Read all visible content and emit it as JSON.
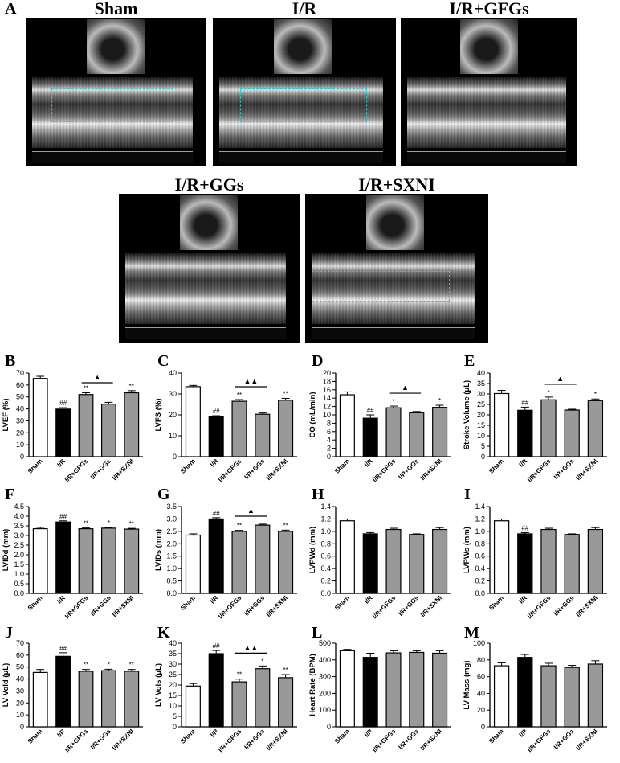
{
  "panel_letters": {
    "A": "A",
    "B": "B",
    "C": "C",
    "D": "D",
    "E": "E",
    "F": "F",
    "G": "G",
    "H": "H",
    "I": "I",
    "J": "J",
    "K": "K",
    "L": "L",
    "M": "M"
  },
  "echo_titles": [
    "Sham",
    "I/R",
    "I/R+GFGs",
    "I/R+GGs",
    "I/R+SXNI"
  ],
  "colors": {
    "sham": "#ffffff",
    "ir": "#000000",
    "treat": "#999999",
    "trace": "#35c6c8",
    "ecg": "#4fd16a"
  },
  "chart_data": [
    {
      "id": "B",
      "type": "bar",
      "categories": [
        "Sham",
        "I/R",
        "I/R+GFGs",
        "I/R+GGs",
        "I/R+SXNI"
      ],
      "values": [
        65.5,
        39.8,
        52,
        44,
        53.5
      ],
      "errors": [
        1.8,
        1.2,
        1.5,
        1.5,
        1.8
      ],
      "ylabel": "LVEF (%)",
      "ylim": [
        0,
        70
      ],
      "yticks": [
        0,
        10,
        20,
        30,
        40,
        50,
        60,
        70
      ],
      "marks": [
        "",
        "##",
        "**",
        "",
        "**"
      ],
      "bracket": {
        "from": 2,
        "to": 3,
        "label": "▲"
      }
    },
    {
      "id": "C",
      "type": "bar",
      "categories": [
        "Sham",
        "I/R",
        "I/R+GFGs",
        "I/R+GGs",
        "I/R+SXNI"
      ],
      "values": [
        33.5,
        19,
        26.5,
        20.3,
        27
      ],
      "errors": [
        0.6,
        0.6,
        0.8,
        0.6,
        0.9
      ],
      "ylabel": "LVFS (%)",
      "ylim": [
        0,
        40
      ],
      "yticks": [
        0,
        10,
        20,
        30,
        40
      ],
      "marks": [
        "",
        "##",
        "**",
        "",
        "**"
      ],
      "bracket": {
        "from": 2,
        "to": 3,
        "label": "▲▲"
      }
    },
    {
      "id": "D",
      "type": "bar",
      "categories": [
        "Sham",
        "I/R",
        "I/R+GFGs",
        "I/R+GGs",
        "I/R+SXNI"
      ],
      "values": [
        14.8,
        9.2,
        11.7,
        10.5,
        11.8
      ],
      "errors": [
        0.7,
        0.8,
        0.4,
        0.3,
        0.5
      ],
      "ylabel": "CO (mL/min)",
      "ylim": [
        0,
        20
      ],
      "yticks": [
        0,
        2,
        4,
        6,
        8,
        10,
        12,
        14,
        16,
        18,
        20
      ],
      "marks": [
        "",
        "##",
        "*",
        "",
        "*"
      ],
      "bracket": {
        "from": 2,
        "to": 3,
        "label": "▲"
      }
    },
    {
      "id": "E",
      "type": "bar",
      "categories": [
        "Sham",
        "I/R",
        "I/R+GFGs",
        "I/R+GGs",
        "I/R+SXNI"
      ],
      "values": [
        30.2,
        22.2,
        27.2,
        22.3,
        26.8
      ],
      "errors": [
        1.5,
        1.5,
        1.3,
        0.4,
        0.8
      ],
      "ylabel": "Stroke Volume (μL)",
      "ylim": [
        0,
        40
      ],
      "yticks": [
        0,
        5,
        10,
        15,
        20,
        25,
        30,
        35,
        40
      ],
      "marks": [
        "",
        "##",
        "*",
        "",
        "*"
      ],
      "bracket": {
        "from": 2,
        "to": 3,
        "label": "▲"
      }
    },
    {
      "id": "F",
      "type": "bar",
      "categories": [
        "Sham",
        "I/R",
        "I/R+GFGs",
        "I/R+GGs",
        "I/R+SXNI"
      ],
      "values": [
        3.35,
        3.7,
        3.35,
        3.38,
        3.33
      ],
      "errors": [
        0.07,
        0.06,
        0.04,
        0.03,
        0.04
      ],
      "ylabel": "LVIDd (mm)",
      "ylim": [
        0,
        4.5
      ],
      "yticks": [
        0,
        0.5,
        1.0,
        1.5,
        2.0,
        2.5,
        3.0,
        3.5,
        4.0,
        4.5
      ],
      "marks": [
        "",
        "##",
        "**",
        "*",
        "**"
      ],
      "bracket": null
    },
    {
      "id": "G",
      "type": "bar",
      "categories": [
        "Sham",
        "I/R",
        "I/R+GFGs",
        "I/R+GGs",
        "I/R+SXNI"
      ],
      "values": [
        2.35,
        3.0,
        2.5,
        2.75,
        2.5
      ],
      "errors": [
        0.05,
        0.05,
        0.04,
        0.04,
        0.05
      ],
      "ylabel": "LVIDs (mm)",
      "ylim": [
        0,
        3.5
      ],
      "yticks": [
        0,
        0.5,
        1.0,
        1.5,
        2.0,
        2.5,
        3.0,
        3.5
      ],
      "marks": [
        "",
        "##",
        "**",
        "",
        "**"
      ],
      "bracket": {
        "from": 2,
        "to": 3,
        "label": "▲"
      }
    },
    {
      "id": "H",
      "type": "bar",
      "categories": [
        "Sham",
        "I/R",
        "I/R+GFGs",
        "I/R+GGs",
        "I/R+SXNI"
      ],
      "values": [
        1.17,
        0.96,
        1.03,
        0.95,
        1.03
      ],
      "errors": [
        0.03,
        0.02,
        0.02,
        0.01,
        0.03
      ],
      "ylabel": "LVPWd (mm)",
      "ylim": [
        0,
        1.4
      ],
      "yticks": [
        0,
        0.2,
        0.4,
        0.6,
        0.8,
        1.0,
        1.2,
        1.4
      ],
      "marks": [
        "",
        "",
        "",
        "",
        ""
      ],
      "bracket": null
    },
    {
      "id": "I",
      "type": "bar",
      "categories": [
        "Sham",
        "I/R",
        "I/R+GFGs",
        "I/R+GGs",
        "I/R+SXNI"
      ],
      "values": [
        1.17,
        0.96,
        1.03,
        0.95,
        1.03
      ],
      "errors": [
        0.03,
        0.02,
        0.02,
        0.01,
        0.03
      ],
      "ylabel": "LVPWs (mm)",
      "ylim": [
        0,
        1.4
      ],
      "yticks": [
        0,
        0.2,
        0.4,
        0.6,
        0.8,
        1.0,
        1.2,
        1.4
      ],
      "marks": [
        "",
        "##",
        "",
        "",
        ""
      ],
      "bracket": null
    },
    {
      "id": "J",
      "type": "bar",
      "categories": [
        "Sham",
        "I/R",
        "I/R+GFGs",
        "I/R+GGs",
        "I/R+SXNI"
      ],
      "values": [
        45.5,
        59,
        46.5,
        47,
        46.5
      ],
      "errors": [
        2.5,
        3,
        1.5,
        1.2,
        1.5
      ],
      "ylabel": "LV Vold (μL)",
      "ylim": [
        0,
        70
      ],
      "yticks": [
        0,
        10,
        20,
        30,
        40,
        50,
        60,
        70
      ],
      "marks": [
        "",
        "##",
        "**",
        "*",
        "**"
      ],
      "bracket": null
    },
    {
      "id": "K",
      "type": "bar",
      "categories": [
        "Sham",
        "I/R",
        "I/R+GFGs",
        "I/R+GGs",
        "I/R+SXNI"
      ],
      "values": [
        19.5,
        35,
        21.5,
        27.8,
        23.5
      ],
      "errors": [
        1.2,
        1.5,
        1.3,
        1.3,
        1.5
      ],
      "ylabel": "LV Vols (μL)",
      "ylim": [
        0,
        40
      ],
      "yticks": [
        0,
        5,
        10,
        15,
        20,
        25,
        30,
        35,
        40
      ],
      "marks": [
        "",
        "##",
        "**",
        "*",
        "**"
      ],
      "bracket": {
        "from": 2,
        "to": 3,
        "label": "▲▲"
      }
    },
    {
      "id": "L",
      "type": "bar",
      "categories": [
        "Sham",
        "I/R",
        "I/R+GFGs",
        "I/R+GGs",
        "I/R+SXNI"
      ],
      "values": [
        455,
        415,
        442,
        445,
        440
      ],
      "errors": [
        8,
        25,
        12,
        10,
        15
      ],
      "ylabel": "Heart Rate (BPM)",
      "ylim": [
        0,
        500
      ],
      "yticks": [
        0,
        100,
        200,
        300,
        400,
        500
      ],
      "marks": [
        "",
        "",
        "",
        "",
        ""
      ],
      "bracket": null
    },
    {
      "id": "M",
      "type": "bar",
      "categories": [
        "Sham",
        "I/R",
        "I/R+GFGs",
        "I/R+GGs",
        "I/R+SXNI"
      ],
      "values": [
        73,
        83,
        73,
        71,
        75
      ],
      "errors": [
        3.5,
        3.5,
        3,
        2.5,
        4
      ],
      "ylabel": "LV Mass (mg)",
      "ylim": [
        0,
        100
      ],
      "yticks": [
        0,
        20,
        40,
        60,
        80,
        100
      ],
      "marks": [
        "",
        "",
        "",
        "",
        ""
      ],
      "bracket": null
    }
  ]
}
